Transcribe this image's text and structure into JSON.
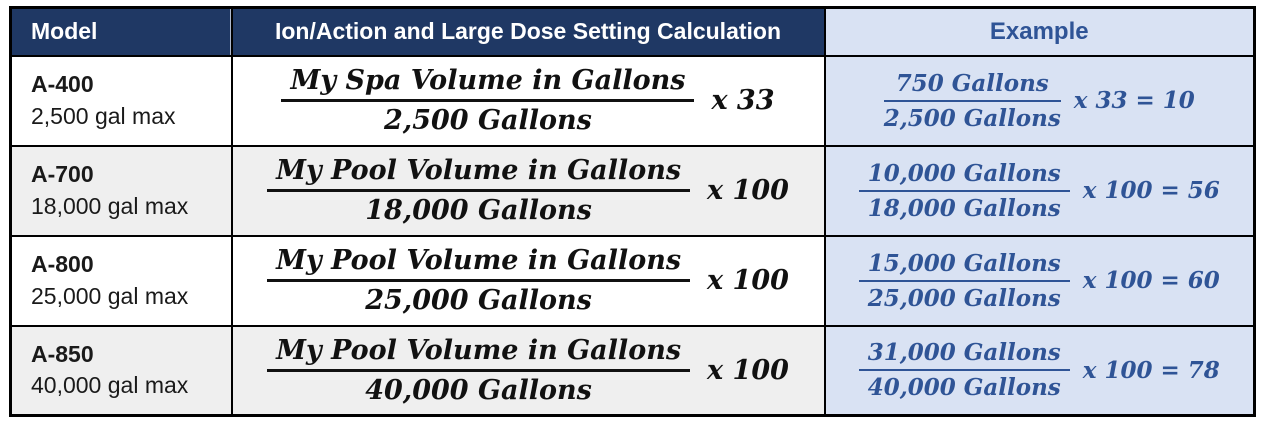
{
  "colors": {
    "header_navy": "#1F3864",
    "header_example_bg": "#D9E2F3",
    "example_text_blue": "#2F5496",
    "row_alt_gray": "#EFEFEF",
    "row_white": "#FFFFFF",
    "border_black": "#000000",
    "formula_black": "#111111"
  },
  "table": {
    "headers": {
      "model": "Model",
      "calculation": "Ion/Action and Large Dose Setting Calculation",
      "example": "Example"
    },
    "rows": [
      {
        "model": "A-400",
        "capacity": "2,500 gal max",
        "calc_numerator": "My Spa Volume in Gallons",
        "calc_denominator": "2,500 Gallons",
        "calc_multiplier": "x 33",
        "ex_numerator": "750 Gallons",
        "ex_denominator": "2,500 Gallons",
        "ex_expression": "x 33 = 10"
      },
      {
        "model": "A-700",
        "capacity": "18,000 gal max",
        "calc_numerator": "My Pool Volume in Gallons",
        "calc_denominator": "18,000 Gallons",
        "calc_multiplier": "x 100",
        "ex_numerator": "10,000 Gallons",
        "ex_denominator": "18,000 Gallons",
        "ex_expression": "x 100 = 56"
      },
      {
        "model": "A-800",
        "capacity": "25,000 gal max",
        "calc_numerator": "My Pool Volume in Gallons",
        "calc_denominator": "25,000 Gallons",
        "calc_multiplier": "x 100",
        "ex_numerator": "15,000 Gallons",
        "ex_denominator": "25,000 Gallons",
        "ex_expression": "x 100 = 60"
      },
      {
        "model": "A-850",
        "capacity": "40,000 gal max",
        "calc_numerator": "My Pool Volume in Gallons",
        "calc_denominator": "40,000 Gallons",
        "calc_multiplier": "x 100",
        "ex_numerator": "31,000 Gallons",
        "ex_denominator": "40,000 Gallons",
        "ex_expression": "x 100 = 78"
      }
    ]
  }
}
